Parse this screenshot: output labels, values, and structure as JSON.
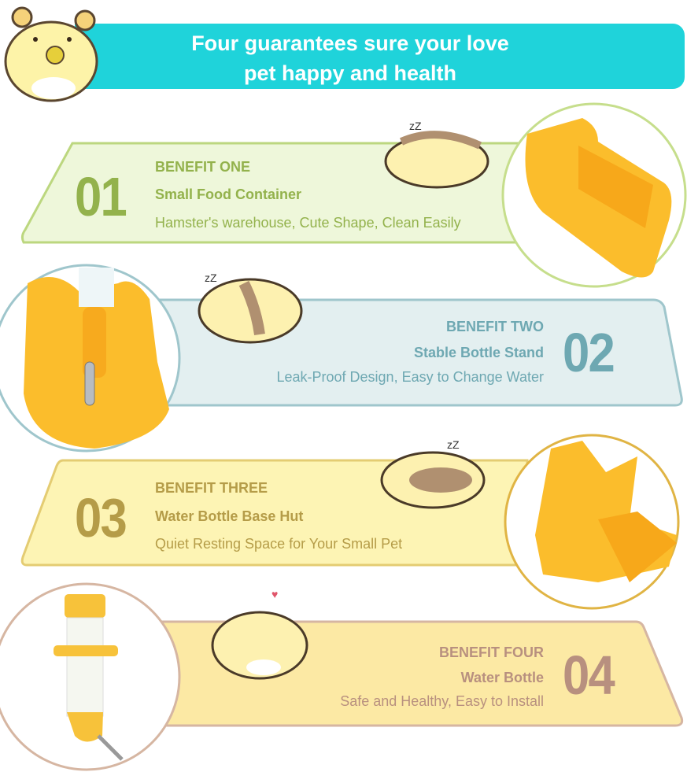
{
  "header": {
    "line1": "Four guarantees sure your love",
    "line2": "pet happy and health",
    "color": "#1fd3da"
  },
  "benefits": [
    {
      "number": "01",
      "label": "BENEFIT ONE",
      "title": "Small Food Container",
      "desc": "Hamster's warehouse, Cute Shape, Clean Easily",
      "text_color": "#93b24c",
      "fill": "#eef7da",
      "stroke": "#bcd77f"
    },
    {
      "number": "02",
      "label": "BENEFIT TWO",
      "title": "Stable Bottle Stand",
      "desc": "Leak-Proof Design, Easy to Change Water",
      "text_color": "#6ea8b2",
      "fill": "#e3eff0",
      "stroke": "#9fc6cc"
    },
    {
      "number": "03",
      "label": "BENEFIT THREE",
      "title": "Water Bottle Base Hut",
      "desc": "Quiet Resting Space for Your Small Pet",
      "text_color": "#b59c48",
      "fill": "#fdf4b4",
      "stroke": "#e4cc72"
    },
    {
      "number": "04",
      "label": "BENEFIT FOUR",
      "title": "Water Bottle",
      "desc": "Safe and Healthy, Easy to Install",
      "text_color": "#b8907f",
      "fill": "#fce9a4",
      "stroke": "#d6b6a2"
    }
  ]
}
